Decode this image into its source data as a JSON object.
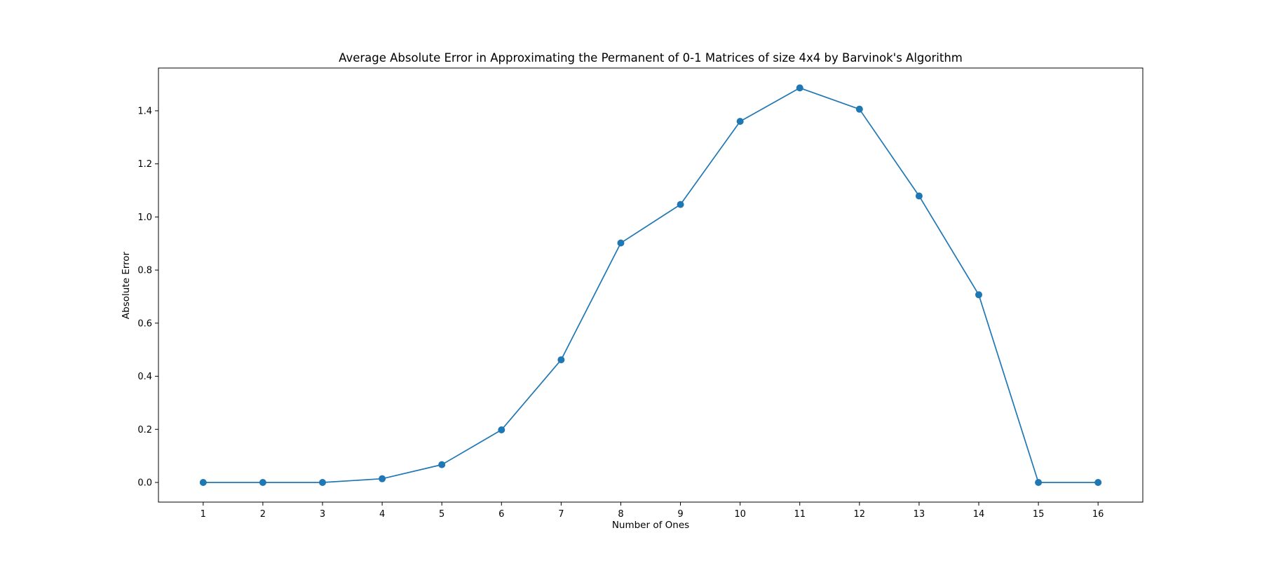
{
  "chart_data": {
    "type": "line",
    "title": "Average Absolute Error in Approximating the Permanent of 0-1 Matrices of size 4x4 by Barvinok's Algorithm",
    "xlabel": "Number of Ones",
    "ylabel": "Absolute Error",
    "x": [
      1,
      2,
      3,
      4,
      5,
      6,
      7,
      8,
      9,
      10,
      11,
      12,
      13,
      14,
      15,
      16
    ],
    "series": [
      {
        "values": [
          0.0,
          0.0,
          0.0,
          0.014,
          0.067,
          0.198,
          0.462,
          0.902,
          1.047,
          1.36,
          1.486,
          1.406,
          1.079,
          0.707,
          0.0,
          0.0
        ],
        "color": "#1f77b4",
        "marker": "circle"
      }
    ],
    "xticks": [
      "1",
      "2",
      "3",
      "4",
      "5",
      "6",
      "7",
      "8",
      "9",
      "10",
      "11",
      "12",
      "13",
      "14",
      "15",
      "16"
    ],
    "yticks": [
      "0.0",
      "0.2",
      "0.4",
      "0.6",
      "0.8",
      "1.0",
      "1.2",
      "1.4"
    ],
    "xlim": [
      0.25,
      16.75
    ],
    "ylim": [
      -0.074,
      1.561
    ],
    "grid": false,
    "legend": "none"
  }
}
